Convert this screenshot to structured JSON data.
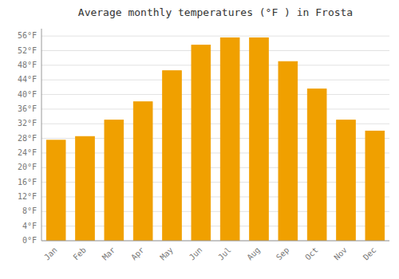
{
  "chart_data": {
    "type": "bar",
    "title": "Average monthly temperatures (°F ) in Frosta",
    "categories": [
      "Jan",
      "Feb",
      "Mar",
      "Apr",
      "May",
      "Jun",
      "Jul",
      "Aug",
      "Sep",
      "Oct",
      "Nov",
      "Dec"
    ],
    "values": [
      27.5,
      28.5,
      33.0,
      38.0,
      46.5,
      53.5,
      55.5,
      55.5,
      49.0,
      41.5,
      33.0,
      30.0
    ],
    "color": "#F0A000",
    "ylim": [
      0,
      58
    ],
    "yticks": [
      {
        "value": 0,
        "label": "0°F"
      },
      {
        "value": 4,
        "label": "4°F"
      },
      {
        "value": 8,
        "label": "8°F"
      },
      {
        "value": 12,
        "label": "12°F"
      },
      {
        "value": 16,
        "label": "16°F"
      },
      {
        "value": 20,
        "label": "20°F"
      },
      {
        "value": 24,
        "label": "24°F"
      },
      {
        "value": 28,
        "label": "28°F"
      },
      {
        "value": 32,
        "label": "32°F"
      },
      {
        "value": 36,
        "label": "36°F"
      },
      {
        "value": 40,
        "label": "40°F"
      },
      {
        "value": 44,
        "label": "44°F"
      },
      {
        "value": 48,
        "label": "48°F"
      },
      {
        "value": 52,
        "label": "52°F"
      },
      {
        "value": 56,
        "label": "56°F"
      }
    ],
    "grid": true
  }
}
